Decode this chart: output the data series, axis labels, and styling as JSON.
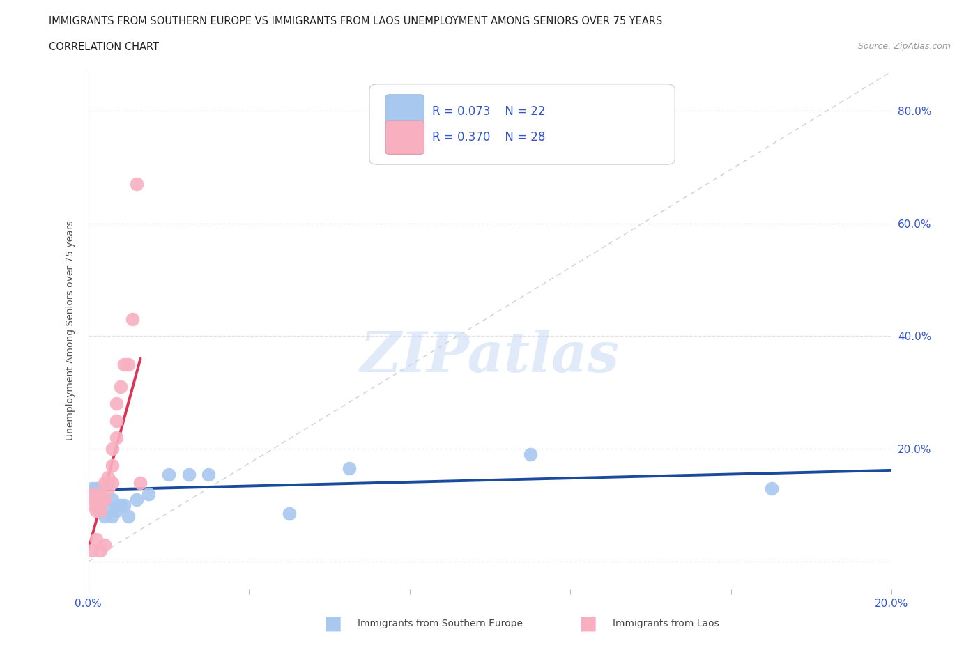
{
  "title_line1": "IMMIGRANTS FROM SOUTHERN EUROPE VS IMMIGRANTS FROM LAOS UNEMPLOYMENT AMONG SENIORS OVER 75 YEARS",
  "title_line2": "CORRELATION CHART",
  "source": "Source: ZipAtlas.com",
  "ylabel": "Unemployment Among Seniors over 75 years",
  "watermark": "ZIPatlas",
  "xlim": [
    0.0,
    0.2
  ],
  "ylim": [
    -0.05,
    0.87
  ],
  "blue_R": 0.073,
  "blue_N": 22,
  "pink_R": 0.37,
  "pink_N": 28,
  "blue_color": "#a8c8f0",
  "pink_color": "#f8b0c0",
  "blue_edge_color": "#7aaad8",
  "pink_edge_color": "#e888a8",
  "blue_line_color": "#1a4a9c",
  "pink_line_color": "#dd3355",
  "diagonal_color": "#d0d0d0",
  "legend_text_color": "#3355cc",
  "grid_color": "#e0e0e0",
  "blue_scatter_x": [
    0.001,
    0.002,
    0.002,
    0.003,
    0.003,
    0.004,
    0.005,
    0.006,
    0.006,
    0.007,
    0.008,
    0.009,
    0.01,
    0.012,
    0.015,
    0.02,
    0.025,
    0.03,
    0.05,
    0.065,
    0.11,
    0.17
  ],
  "blue_scatter_y": [
    0.13,
    0.11,
    0.13,
    0.09,
    0.12,
    0.08,
    0.1,
    0.08,
    0.11,
    0.09,
    0.1,
    0.1,
    0.08,
    0.11,
    0.12,
    0.155,
    0.155,
    0.155,
    0.085,
    0.165,
    0.19,
    0.13
  ],
  "pink_scatter_x": [
    0.001,
    0.001,
    0.001,
    0.002,
    0.002,
    0.002,
    0.003,
    0.003,
    0.003,
    0.003,
    0.004,
    0.004,
    0.004,
    0.005,
    0.005,
    0.005,
    0.006,
    0.006,
    0.006,
    0.007,
    0.007,
    0.007,
    0.008,
    0.009,
    0.01,
    0.011,
    0.012,
    0.013
  ],
  "pink_scatter_y": [
    0.02,
    0.1,
    0.12,
    0.04,
    0.09,
    0.11,
    0.02,
    0.09,
    0.11,
    0.12,
    0.03,
    0.11,
    0.14,
    0.13,
    0.14,
    0.15,
    0.14,
    0.17,
    0.2,
    0.22,
    0.25,
    0.28,
    0.31,
    0.35,
    0.35,
    0.43,
    0.67,
    0.14
  ],
  "blue_line_x": [
    0.0,
    0.2
  ],
  "blue_line_y": [
    0.127,
    0.162
  ],
  "pink_line_x": [
    0.0,
    0.013
  ],
  "pink_line_y": [
    0.02,
    0.36
  ]
}
